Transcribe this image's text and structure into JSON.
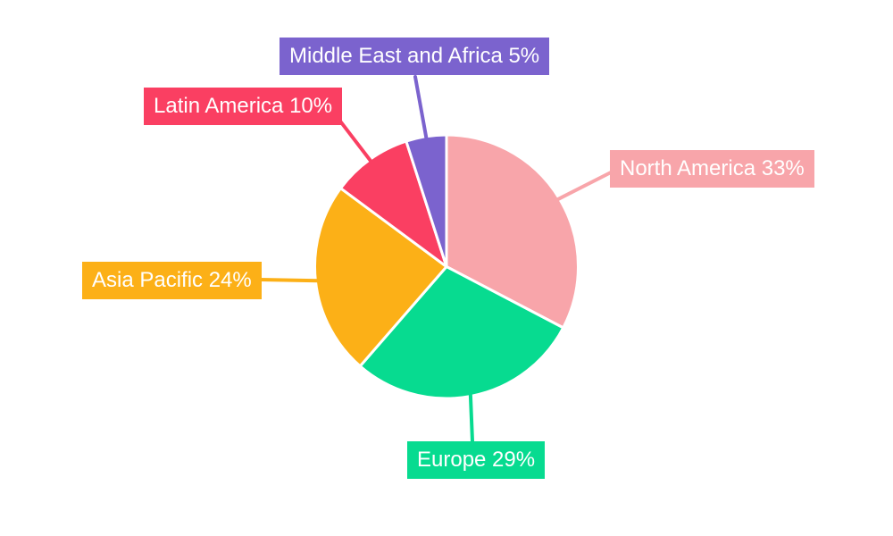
{
  "chart_data": {
    "type": "pie",
    "title": "",
    "start_angle_deg": -90,
    "direction": "clockwise",
    "label_style": "colored-boxes-with-leader-lines",
    "text_color": "#FFFFFF",
    "background_color": "#FFFFFF",
    "separator_color": "#FFFFFF",
    "slices": [
      {
        "label": "North America",
        "value": 33,
        "pct": "33%",
        "label_text": "North America 33%",
        "color": "#F8A5AA"
      },
      {
        "label": "Europe",
        "value": 29,
        "pct": "29%",
        "label_text": "Europe 29%",
        "color": "#07DB90"
      },
      {
        "label": "Asia Pacific",
        "value": 24,
        "pct": "24%",
        "label_text": "Asia Pacific 24%",
        "color": "#FCB017"
      },
      {
        "label": "Latin America",
        "value": 10,
        "pct": "10%",
        "label_text": "Latin America 10%",
        "color": "#FA3F62"
      },
      {
        "label": "Middle East and Africa",
        "value": 5,
        "pct": "5%",
        "label_text": "Middle East and Africa 5%",
        "color": "#7B63CE"
      }
    ]
  }
}
